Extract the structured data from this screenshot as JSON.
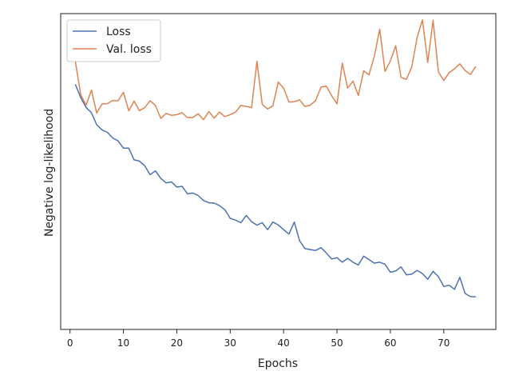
{
  "chart_data": {
    "type": "line",
    "xlabel": "Epochs",
    "ylabel": "Negative log-likelihood",
    "xlim": [
      -1.75,
      79.75
    ],
    "ylim": [
      0,
      1
    ],
    "x_ticks": [
      0,
      10,
      20,
      30,
      40,
      50,
      60,
      70
    ],
    "y_ticks_visible": false,
    "grid": false,
    "legend_position": "upper-left",
    "series": [
      {
        "name": "Loss",
        "color": "#4c72b0",
        "x": [
          1,
          2,
          3,
          4,
          5,
          6,
          7,
          8,
          9,
          10,
          11,
          12,
          13,
          14,
          15,
          16,
          17,
          18,
          19,
          20,
          21,
          22,
          23,
          24,
          25,
          26,
          27,
          28,
          29,
          30,
          31,
          32,
          33,
          34,
          35,
          36,
          37,
          38,
          39,
          40,
          41,
          42,
          43,
          44,
          45,
          46,
          47,
          48,
          49,
          50,
          51,
          52,
          53,
          54,
          55,
          56,
          57,
          58,
          59,
          60,
          61,
          62,
          63,
          64,
          65,
          66,
          67,
          68,
          69,
          70,
          71,
          72,
          73,
          74,
          75,
          76
        ],
        "y": [
          0.776,
          0.734,
          0.703,
          0.686,
          0.648,
          0.632,
          0.624,
          0.606,
          0.597,
          0.574,
          0.574,
          0.537,
          0.533,
          0.518,
          0.49,
          0.502,
          0.478,
          0.464,
          0.467,
          0.451,
          0.453,
          0.429,
          0.432,
          0.424,
          0.408,
          0.401,
          0.4,
          0.392,
          0.379,
          0.352,
          0.346,
          0.338,
          0.361,
          0.341,
          0.33,
          0.338,
          0.316,
          0.34,
          0.331,
          0.316,
          0.302,
          0.34,
          0.281,
          0.256,
          0.253,
          0.25,
          0.259,
          0.242,
          0.223,
          0.227,
          0.213,
          0.225,
          0.213,
          0.204,
          0.232,
          0.221,
          0.21,
          0.213,
          0.206,
          0.181,
          0.185,
          0.198,
          0.173,
          0.175,
          0.187,
          0.177,
          0.159,
          0.184,
          0.167,
          0.136,
          0.14,
          0.127,
          0.165,
          0.114,
          0.104,
          0.103
        ]
      },
      {
        "name": "Val. loss",
        "color": "#dd8452",
        "x": [
          1,
          2,
          3,
          4,
          5,
          6,
          7,
          8,
          9,
          10,
          11,
          12,
          13,
          14,
          15,
          16,
          17,
          18,
          19,
          20,
          21,
          22,
          23,
          24,
          25,
          26,
          27,
          28,
          29,
          30,
          31,
          32,
          33,
          34,
          35,
          36,
          37,
          38,
          39,
          40,
          41,
          42,
          43,
          44,
          45,
          46,
          47,
          48,
          49,
          50,
          51,
          52,
          53,
          54,
          55,
          56,
          57,
          58,
          59,
          60,
          61,
          62,
          63,
          64,
          65,
          66,
          67,
          68,
          69,
          70,
          71,
          72,
          73,
          74,
          75,
          76
        ],
        "y": [
          0.849,
          0.743,
          0.71,
          0.758,
          0.685,
          0.714,
          0.715,
          0.725,
          0.724,
          0.751,
          0.692,
          0.723,
          0.693,
          0.702,
          0.724,
          0.709,
          0.668,
          0.684,
          0.678,
          0.68,
          0.686,
          0.671,
          0.671,
          0.683,
          0.664,
          0.69,
          0.669,
          0.688,
          0.674,
          0.68,
          0.688,
          0.709,
          0.706,
          0.702,
          0.849,
          0.713,
          0.698,
          0.708,
          0.783,
          0.764,
          0.72,
          0.721,
          0.727,
          0.706,
          0.71,
          0.725,
          0.767,
          0.77,
          0.74,
          0.714,
          0.843,
          0.764,
          0.786,
          0.741,
          0.819,
          0.806,
          0.866,
          0.951,
          0.817,
          0.85,
          0.898,
          0.798,
          0.792,
          0.831,
          0.924,
          0.98,
          0.845,
          0.979,
          0.815,
          0.788,
          0.813,
          0.825,
          0.841,
          0.82,
          0.807,
          0.833
        ]
      }
    ]
  }
}
